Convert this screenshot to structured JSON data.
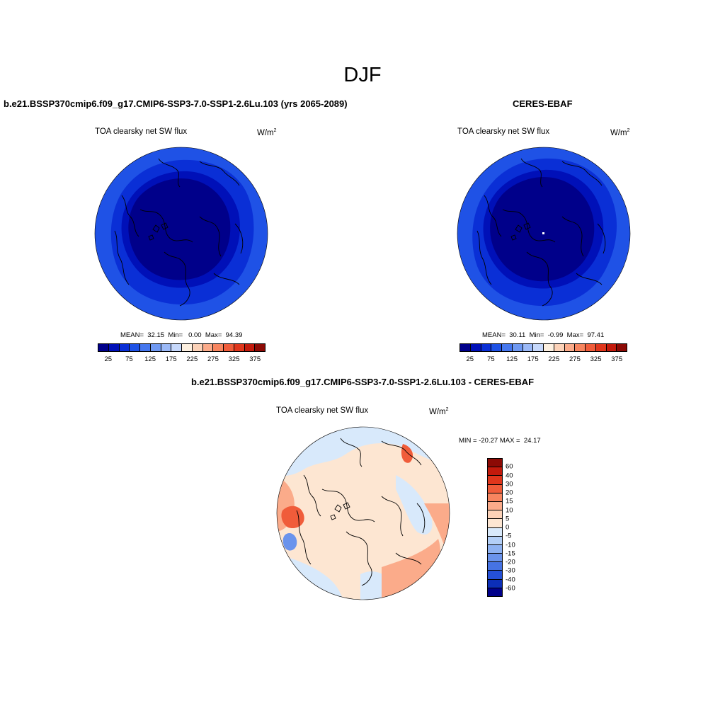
{
  "figure": {
    "season": "DJF"
  },
  "panels": [
    {
      "case_title": "b.e21.BSSP370cmip6.f09_g17.CMIP6-SSP3-7.0-SSP1-2.6Lu.103 (yrs 2065-2089)",
      "variable": "TOA clearsky net SW flux",
      "units_base": "W/m",
      "units_exp": "2",
      "stats_text": "MEAN=  32.15  Min=   0.00  Max=  94.39",
      "stats": {
        "mean": 32.15,
        "min": 0.0,
        "max": 94.39
      }
    },
    {
      "case_title": "CERES-EBAF",
      "variable": "TOA clearsky net SW flux",
      "units_base": "W/m",
      "units_exp": "2",
      "stats_text": "MEAN=  30.11  Min=  -0.99  Max=  97.41",
      "stats": {
        "mean": 30.11,
        "min": -0.99,
        "max": 97.41
      }
    }
  ],
  "difference": {
    "title": "b.e21.BSSP370cmip6.f09_g17.CMIP6-SSP3-7.0-SSP1-2.6Lu.103 - CERES-EBAF",
    "variable": "TOA clearsky net SW flux",
    "units_base": "W/m",
    "units_exp": "2",
    "minmax_text": "MIN = -20.27 MAX =  24.17",
    "min": -20.27,
    "max": 24.17
  },
  "colorbars": {
    "absolute": {
      "tick_labels": [
        "25",
        "75",
        "125",
        "175",
        "225",
        "275",
        "325",
        "375"
      ],
      "colors": [
        "#00008a",
        "#0010b8",
        "#0a2fd6",
        "#1f52e6",
        "#4577ee",
        "#6f99f2",
        "#9bb9f7",
        "#c6d8fb",
        "#fdf0e0",
        "#fcd2b8",
        "#fbab8a",
        "#f7855f",
        "#f05c3a",
        "#e0361c",
        "#c31a0c",
        "#8c0a05"
      ]
    },
    "difference": {
      "tick_labels": [
        "60",
        "40",
        "30",
        "20",
        "15",
        "10",
        "5",
        "0",
        "-5",
        "-10",
        "-15",
        "-20",
        "-30",
        "-40",
        "-60"
      ],
      "colors": [
        "#8c0a05",
        "#c31a0c",
        "#e0361c",
        "#f05c3a",
        "#f7855f",
        "#fbab8a",
        "#fcd2b8",
        "#fde6d2",
        "#d8e9fb",
        "#b3cff7",
        "#8eb2f2",
        "#6a93ec",
        "#4673e4",
        "#2550d6",
        "#0c2fb8",
        "#00008a"
      ]
    }
  },
  "maps": {
    "projection": "north polar stereographic",
    "absolute_colors": {
      "outer": "#1f52e6",
      "ring": "#0a2fd6",
      "inner": "#0010b8",
      "core": "#00008a"
    },
    "difference_colors": {
      "base": "#fde6d2",
      "ocean_blue": "#d8e9fb",
      "warm1": "#fbab8a",
      "warm2": "#f05c3a",
      "cool": "#6a93ec"
    }
  }
}
